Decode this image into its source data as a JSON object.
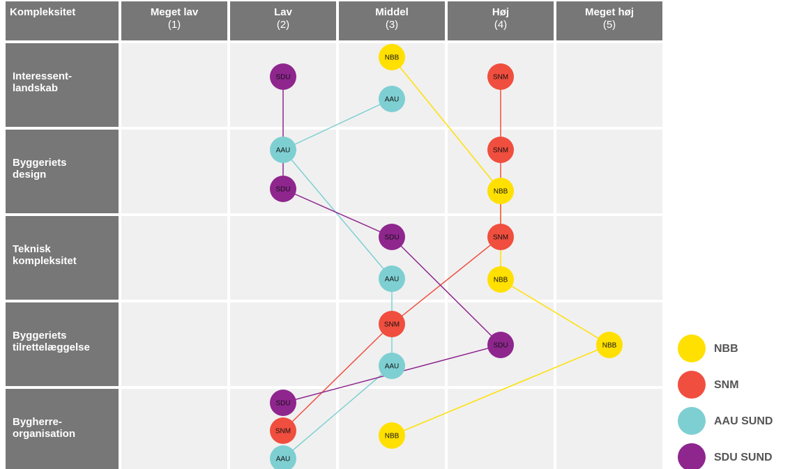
{
  "header": {
    "corner": "Kompleksitet"
  },
  "columns": [
    {
      "name": "Meget lav",
      "number": "(1)"
    },
    {
      "name": "Lav",
      "number": "(2)"
    },
    {
      "name": "Middel",
      "number": "(3)"
    },
    {
      "name": "Høj",
      "number": "(4)"
    },
    {
      "name": "Meget høj",
      "number": "(5)"
    }
  ],
  "rows": [
    [
      "Interessent-",
      "landskab"
    ],
    [
      "Byggeriets",
      "design"
    ],
    [
      "Teknisk",
      "kompleksitet"
    ],
    [
      "Byggeriets",
      "tilrettelæggelse"
    ],
    [
      "Bygherre-",
      "organisation"
    ]
  ],
  "projects": [
    {
      "tag": "NBB",
      "legend": "NBB",
      "color": "#ffe000",
      "levels": [
        3,
        4,
        4,
        5,
        3
      ]
    },
    {
      "tag": "SNM",
      "legend": "SNM",
      "color": "#f04e3e",
      "levels": [
        4,
        4,
        4,
        3,
        2
      ]
    },
    {
      "tag": "AAU",
      "legend": "AAU SUND",
      "color": "#7ecfd2",
      "levels": [
        3,
        2,
        3,
        3,
        2
      ]
    },
    {
      "tag": "SDU",
      "legend": "SDU SUND",
      "color": "#8e268e",
      "levels": [
        2,
        2,
        3,
        4,
        2
      ]
    }
  ]
}
